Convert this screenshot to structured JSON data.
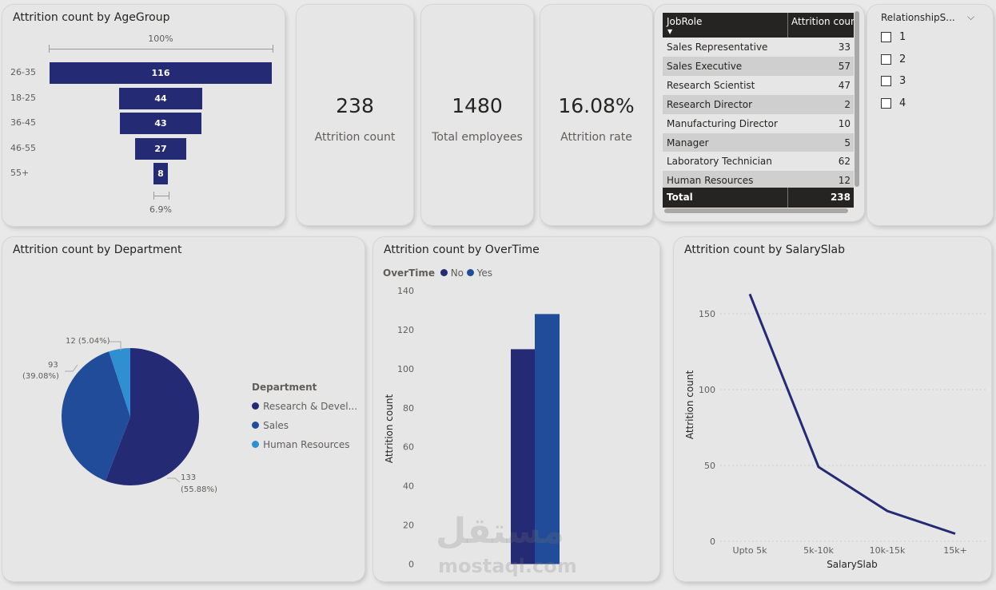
{
  "age_card": {
    "title": "Attrition count by AgeGroup",
    "top_pct": "100%",
    "bottom_pct": "6.9%"
  },
  "kpis": [
    {
      "value": "238",
      "label": "Attrition count"
    },
    {
      "value": "1480",
      "label": "Total employees"
    },
    {
      "value": "16.08%",
      "label": "Attrition rate"
    }
  ],
  "jobrole_table": {
    "headers": [
      "JobRole",
      "Attrition count"
    ],
    "rows": [
      {
        "role": "Sales Representative",
        "count": "33"
      },
      {
        "role": "Sales Executive",
        "count": "57"
      },
      {
        "role": "Research Scientist",
        "count": "47"
      },
      {
        "role": "Research Director",
        "count": "2"
      },
      {
        "role": "Manufacturing Director",
        "count": "10"
      },
      {
        "role": "Manager",
        "count": "5"
      },
      {
        "role": "Laboratory Technician",
        "count": "62"
      },
      {
        "role": "Human Resources",
        "count": "12"
      }
    ],
    "total_label": "Total",
    "total_value": "238"
  },
  "slicer": {
    "title": "RelationshipS...",
    "options": [
      "1",
      "2",
      "3",
      "4"
    ]
  },
  "department_card": {
    "title": "Attrition count by Department",
    "legend_title": "Department",
    "legend_items": [
      "Research & Devel...",
      "Sales",
      "Human Resources"
    ],
    "labels": {
      "hr": "12 (5.04%)",
      "sales_count": "93",
      "sales_pct": "(39.08%)",
      "rd_count": "133",
      "rd_pct": "(55.88%)"
    }
  },
  "overtime_card": {
    "title": "Attrition count by OverTime",
    "legend_title": "OverTime",
    "legend_items": [
      "No",
      "Yes"
    ],
    "ylabel": "Attrition count"
  },
  "salary_card": {
    "title": "Attrition count by SalarySlab",
    "xlabel": "SalarySlab",
    "ylabel": "Attrition count"
  },
  "watermark": {
    "arabic": "مستقل",
    "latin": "mostaql.com"
  },
  "colors": {
    "navy": "#252a75",
    "blue": "#214c9a",
    "light_blue": "#2f8fd1",
    "card_bg": "#e6e6e6"
  },
  "chart_data": [
    {
      "type": "bar",
      "chart": "funnel",
      "title": "Attrition count by AgeGroup",
      "categories": [
        "26-35",
        "18-25",
        "36-45",
        "46-55",
        "55+"
      ],
      "values": [
        116,
        44,
        43,
        27,
        8
      ]
    },
    {
      "type": "pie",
      "title": "Attrition count by Department",
      "categories": [
        "Research & Development",
        "Sales",
        "Human Resources"
      ],
      "values": [
        133,
        93,
        12
      ],
      "percents": [
        55.88,
        39.08,
        5.04
      ]
    },
    {
      "type": "bar",
      "title": "Attrition count by OverTime",
      "categories": [
        "No",
        "Yes"
      ],
      "values": [
        110,
        128
      ],
      "ylabel": "Attrition count",
      "ylim": [
        0,
        140
      ],
      "yticks": [
        0,
        20,
        40,
        60,
        80,
        100,
        120,
        140
      ]
    },
    {
      "type": "line",
      "title": "Attrition count by SalarySlab",
      "categories": [
        "Upto 5k",
        "5k-10k",
        "10k-15k",
        "15k+"
      ],
      "values": [
        163,
        49,
        20,
        5
      ],
      "xlabel": "SalarySlab",
      "ylabel": "Attrition count",
      "ylim": [
        0,
        170
      ],
      "yticks": [
        0,
        50,
        100,
        150
      ],
      "grid": true
    }
  ]
}
